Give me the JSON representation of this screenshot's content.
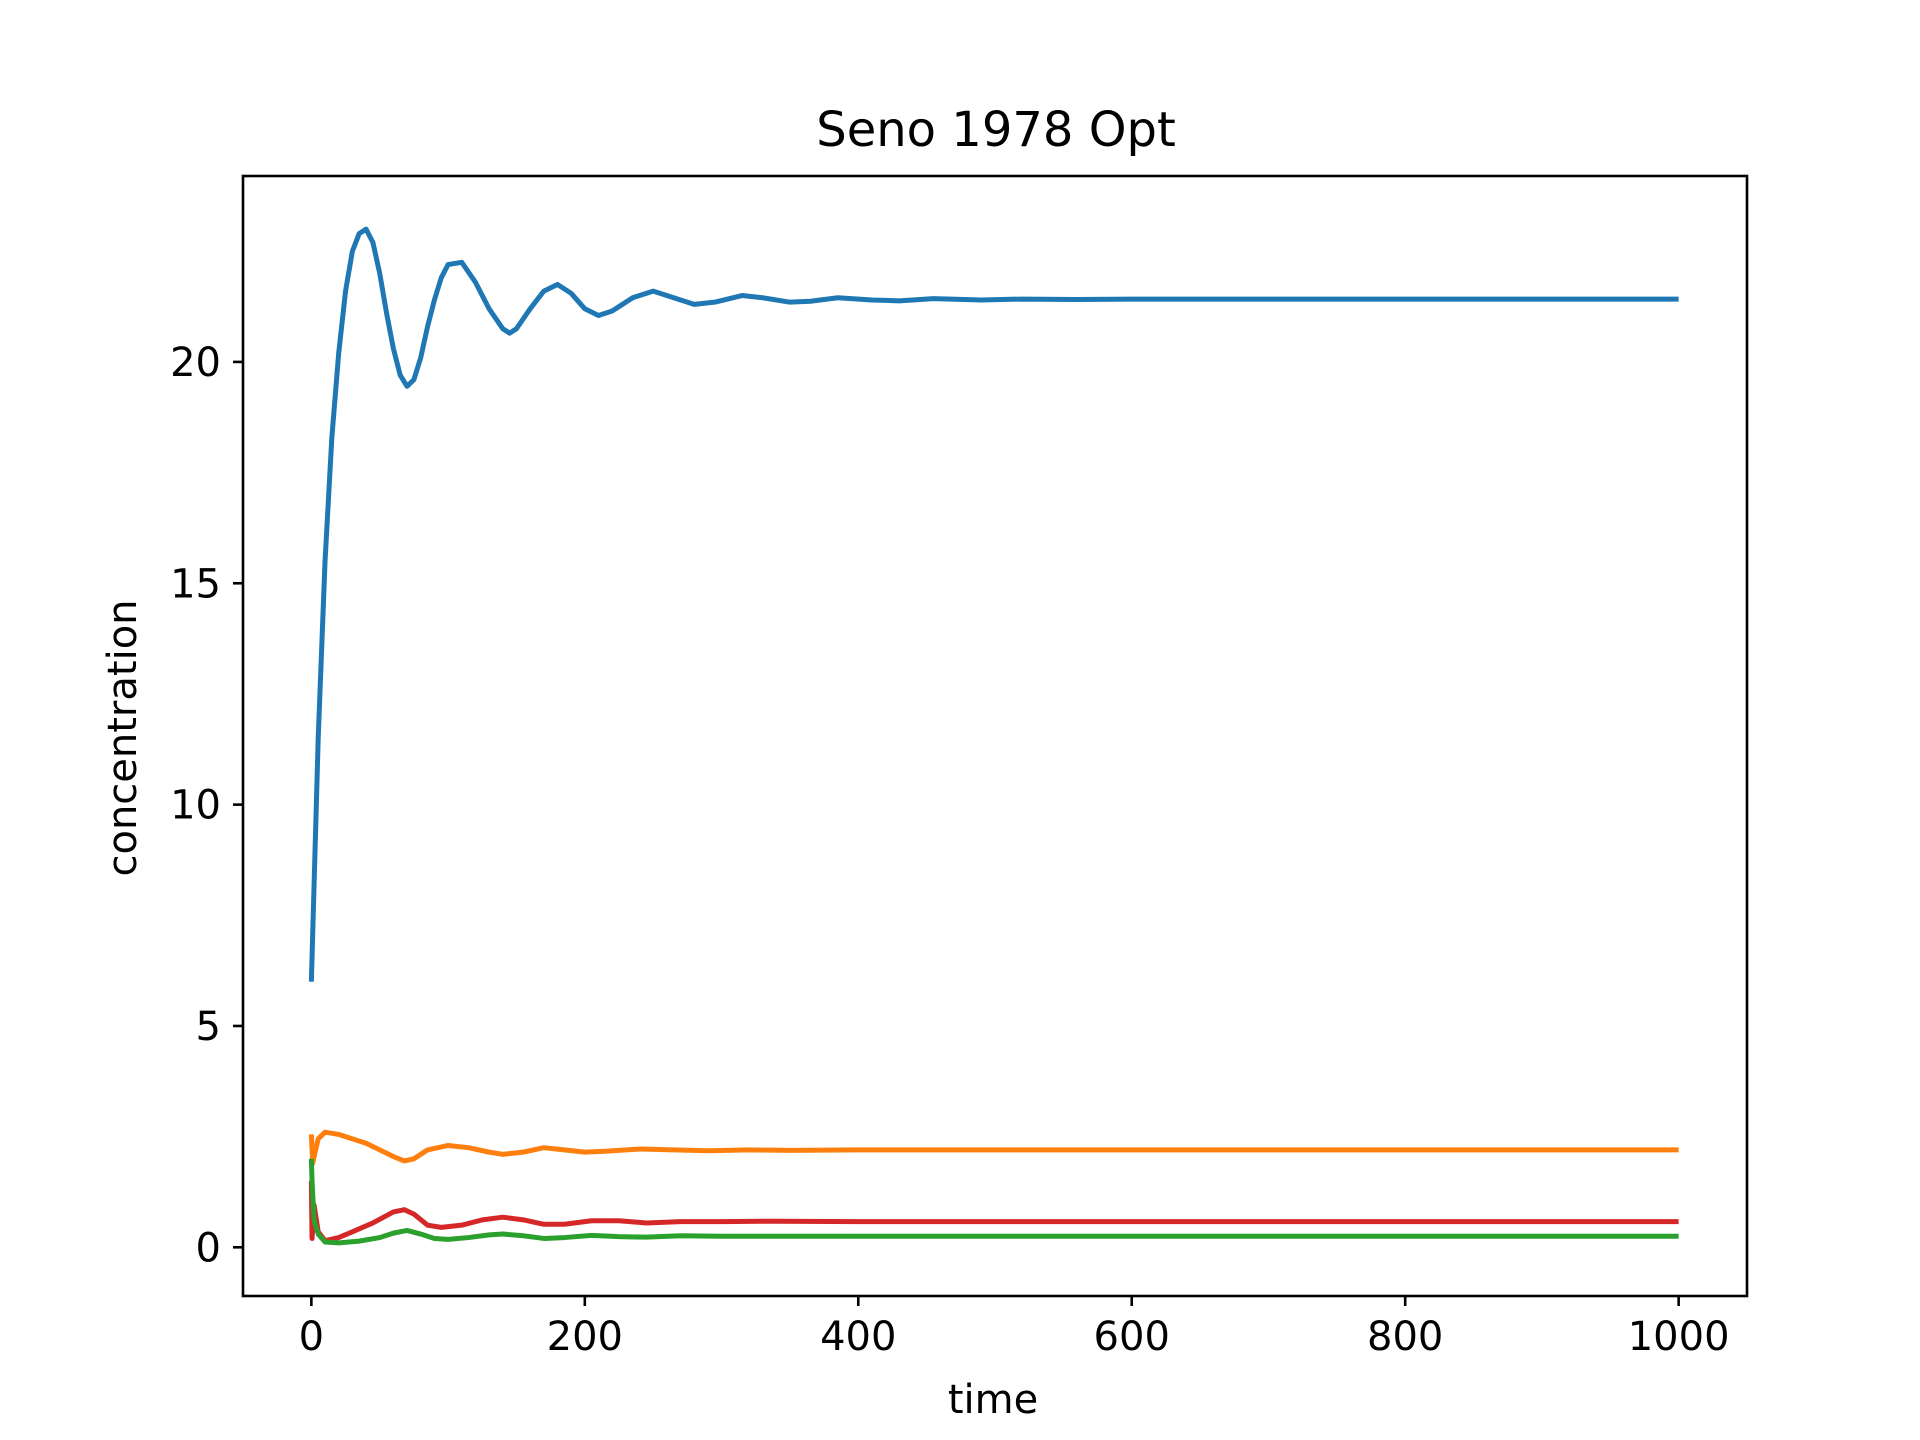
{
  "chart_data": {
    "type": "line",
    "title": "Seno 1978 Opt",
    "xlabel": "time",
    "ylabel": "concentration",
    "xlim": [
      -50,
      1050
    ],
    "ylim": [
      -1.1,
      24.2
    ],
    "grid": false,
    "legend": "none",
    "x_ticks": [
      0,
      200,
      400,
      600,
      800,
      1000
    ],
    "y_ticks": [
      0,
      5,
      10,
      15,
      20
    ],
    "series": [
      {
        "color": "#1f77b4",
        "points": [
          [
            0,
            6
          ],
          [
            5,
            11.5
          ],
          [
            10,
            15.5
          ],
          [
            15,
            18.3
          ],
          [
            20,
            20.2
          ],
          [
            25,
            21.6
          ],
          [
            30,
            22.5
          ],
          [
            35,
            22.9
          ],
          [
            40,
            23.0
          ],
          [
            45,
            22.7
          ],
          [
            50,
            22.0
          ],
          [
            55,
            21.1
          ],
          [
            60,
            20.3
          ],
          [
            65,
            19.7
          ],
          [
            70,
            19.45
          ],
          [
            75,
            19.6
          ],
          [
            80,
            20.1
          ],
          [
            85,
            20.8
          ],
          [
            90,
            21.4
          ],
          [
            95,
            21.9
          ],
          [
            100,
            22.2
          ],
          [
            110,
            22.25
          ],
          [
            120,
            21.8
          ],
          [
            130,
            21.2
          ],
          [
            140,
            20.75
          ],
          [
            145,
            20.65
          ],
          [
            150,
            20.75
          ],
          [
            160,
            21.2
          ],
          [
            170,
            21.6
          ],
          [
            180,
            21.75
          ],
          [
            190,
            21.55
          ],
          [
            200,
            21.2
          ],
          [
            210,
            21.05
          ],
          [
            220,
            21.15
          ],
          [
            235,
            21.45
          ],
          [
            250,
            21.6
          ],
          [
            265,
            21.45
          ],
          [
            280,
            21.3
          ],
          [
            295,
            21.35
          ],
          [
            315,
            21.5
          ],
          [
            330,
            21.45
          ],
          [
            350,
            21.35
          ],
          [
            365,
            21.37
          ],
          [
            385,
            21.45
          ],
          [
            410,
            21.4
          ],
          [
            430,
            21.38
          ],
          [
            455,
            21.43
          ],
          [
            490,
            21.4
          ],
          [
            520,
            21.42
          ],
          [
            560,
            21.41
          ],
          [
            600,
            21.42
          ],
          [
            700,
            21.42
          ],
          [
            800,
            21.42
          ],
          [
            900,
            21.42
          ],
          [
            1000,
            21.42
          ]
        ]
      },
      {
        "color": "#ff7f0e",
        "points": [
          [
            0,
            2.55
          ],
          [
            1,
            1.9
          ],
          [
            2,
            2.05
          ],
          [
            5,
            2.45
          ],
          [
            10,
            2.6
          ],
          [
            20,
            2.55
          ],
          [
            30,
            2.45
          ],
          [
            40,
            2.35
          ],
          [
            50,
            2.2
          ],
          [
            60,
            2.05
          ],
          [
            68,
            1.95
          ],
          [
            75,
            2.0
          ],
          [
            85,
            2.2
          ],
          [
            100,
            2.3
          ],
          [
            115,
            2.25
          ],
          [
            130,
            2.15
          ],
          [
            140,
            2.1
          ],
          [
            155,
            2.15
          ],
          [
            170,
            2.25
          ],
          [
            185,
            2.2
          ],
          [
            200,
            2.15
          ],
          [
            215,
            2.17
          ],
          [
            240,
            2.22
          ],
          [
            265,
            2.2
          ],
          [
            290,
            2.18
          ],
          [
            320,
            2.2
          ],
          [
            350,
            2.19
          ],
          [
            400,
            2.2
          ],
          [
            500,
            2.2
          ],
          [
            600,
            2.2
          ],
          [
            700,
            2.2
          ],
          [
            800,
            2.2
          ],
          [
            900,
            2.2
          ],
          [
            1000,
            2.2
          ]
        ]
      },
      {
        "color": "#d62728",
        "points": [
          [
            0,
            1.5
          ],
          [
            0.5,
            0.2
          ],
          [
            2,
            0.95
          ],
          [
            5,
            0.35
          ],
          [
            10,
            0.15
          ],
          [
            20,
            0.22
          ],
          [
            30,
            0.35
          ],
          [
            45,
            0.55
          ],
          [
            60,
            0.8
          ],
          [
            68,
            0.85
          ],
          [
            75,
            0.75
          ],
          [
            85,
            0.5
          ],
          [
            95,
            0.45
          ],
          [
            110,
            0.5
          ],
          [
            125,
            0.62
          ],
          [
            140,
            0.68
          ],
          [
            155,
            0.62
          ],
          [
            170,
            0.52
          ],
          [
            185,
            0.52
          ],
          [
            205,
            0.6
          ],
          [
            225,
            0.6
          ],
          [
            245,
            0.55
          ],
          [
            270,
            0.58
          ],
          [
            300,
            0.58
          ],
          [
            340,
            0.59
          ],
          [
            400,
            0.58
          ],
          [
            500,
            0.58
          ],
          [
            600,
            0.58
          ],
          [
            700,
            0.58
          ],
          [
            800,
            0.58
          ],
          [
            900,
            0.58
          ],
          [
            1000,
            0.58
          ]
        ]
      },
      {
        "color": "#2ca02c",
        "points": [
          [
            0,
            2.0
          ],
          [
            0.5,
            1.5
          ],
          [
            2,
            0.6
          ],
          [
            5,
            0.3
          ],
          [
            10,
            0.12
          ],
          [
            20,
            0.1
          ],
          [
            35,
            0.14
          ],
          [
            50,
            0.22
          ],
          [
            60,
            0.32
          ],
          [
            70,
            0.38
          ],
          [
            80,
            0.3
          ],
          [
            90,
            0.2
          ],
          [
            100,
            0.18
          ],
          [
            115,
            0.22
          ],
          [
            130,
            0.28
          ],
          [
            140,
            0.3
          ],
          [
            155,
            0.26
          ],
          [
            170,
            0.2
          ],
          [
            185,
            0.22
          ],
          [
            205,
            0.27
          ],
          [
            225,
            0.24
          ],
          [
            245,
            0.23
          ],
          [
            270,
            0.26
          ],
          [
            300,
            0.25
          ],
          [
            350,
            0.25
          ],
          [
            400,
            0.25
          ],
          [
            500,
            0.25
          ],
          [
            600,
            0.25
          ],
          [
            700,
            0.25
          ],
          [
            800,
            0.25
          ],
          [
            900,
            0.25
          ],
          [
            1000,
            0.25
          ]
        ]
      }
    ]
  }
}
